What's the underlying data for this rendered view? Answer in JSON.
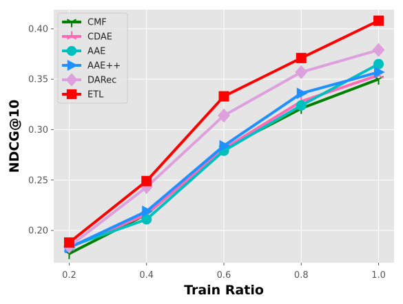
{
  "chart_data": {
    "type": "line",
    "x": [
      0.2,
      0.4,
      0.6,
      0.8,
      1.0
    ],
    "xlabel": "Train Ratio",
    "ylabel": "NDCG@10",
    "xlim": [
      0.16,
      1.04
    ],
    "ylim": [
      0.168,
      0.419
    ],
    "xticks": [
      "0.2",
      "0.4",
      "0.6",
      "0.8",
      "1.0"
    ],
    "yticks": [
      "0.20",
      "0.25",
      "0.30",
      "0.35",
      "0.40"
    ],
    "grid": true,
    "legend_position": "top-left",
    "series": [
      {
        "name": "CMF",
        "color": "#008000",
        "marker": "tri-down",
        "values": [
          0.177,
          0.216,
          0.281,
          0.321,
          0.35
        ]
      },
      {
        "name": "CDAE",
        "color": "#ff69b4",
        "marker": "tri-up",
        "values": [
          0.183,
          0.216,
          0.281,
          0.328,
          0.354
        ]
      },
      {
        "name": "AAE",
        "color": "#00bfbf",
        "marker": "circle",
        "values": [
          0.184,
          0.211,
          0.279,
          0.324,
          0.365
        ]
      },
      {
        "name": "AAE++",
        "color": "#1e90ff",
        "marker": "triangle-right",
        "values": [
          0.183,
          0.219,
          0.284,
          0.336,
          0.357
        ]
      },
      {
        "name": "DARec",
        "color": "#dda0dd",
        "marker": "diamond",
        "values": [
          0.184,
          0.243,
          0.314,
          0.357,
          0.379
        ]
      },
      {
        "name": "ETL",
        "color": "#ff0000",
        "marker": "square",
        "values": [
          0.188,
          0.249,
          0.333,
          0.371,
          0.408
        ]
      }
    ]
  }
}
